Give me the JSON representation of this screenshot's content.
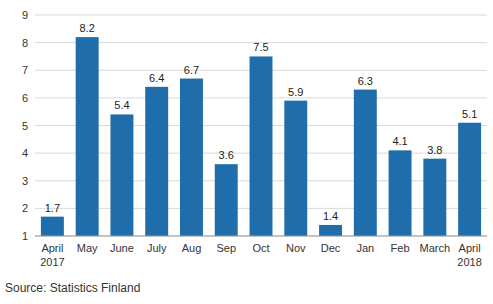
{
  "chart_data": {
    "type": "bar",
    "categories": [
      "April\n2017",
      "May",
      "June",
      "July",
      "Aug",
      "Sep",
      "Oct",
      "Nov",
      "Dec",
      "Jan",
      "Feb",
      "March",
      "April\n2018"
    ],
    "values": [
      1.7,
      8.2,
      5.4,
      6.4,
      6.7,
      3.6,
      7.5,
      5.9,
      1.4,
      6.3,
      4.1,
      3.8,
      5.1
    ],
    "color": "#1f6eab",
    "ylim": [
      1,
      9
    ],
    "yticks": [
      1,
      2,
      3,
      4,
      5,
      6,
      7,
      8,
      9
    ],
    "grid": true,
    "data_labels": true,
    "annotations": [
      "Source: Statistics Finland"
    ]
  }
}
